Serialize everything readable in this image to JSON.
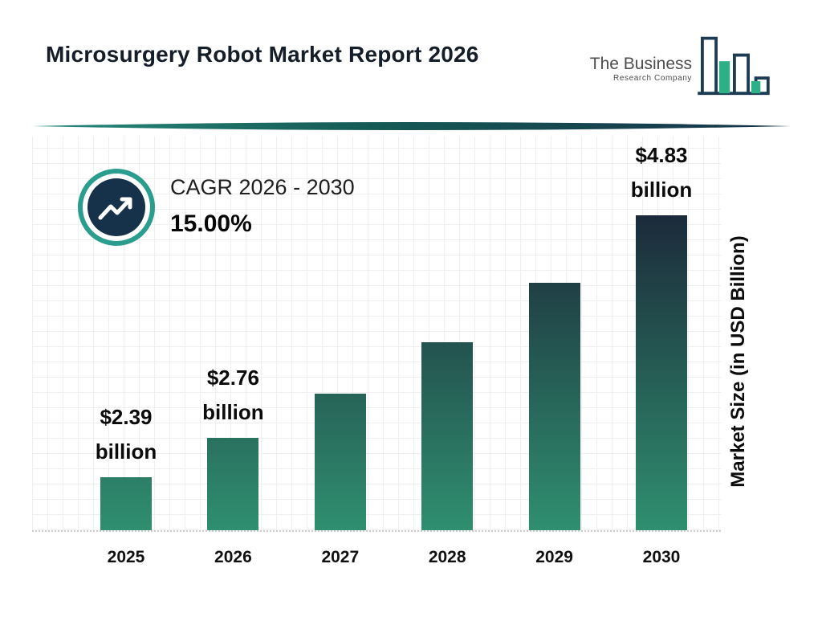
{
  "header": {
    "title": "Microsurgery Robot Market Report 2026",
    "logo": {
      "line1": "The Business",
      "line2": "Research Company"
    }
  },
  "cagr": {
    "label": "CAGR 2026 - 2030",
    "value": "15.00%"
  },
  "chart_data": {
    "type": "bar",
    "title": "Microsurgery Robot Market Report 2026",
    "categories": [
      "2025",
      "2026",
      "2027",
      "2028",
      "2029",
      "2030"
    ],
    "values": [
      2.39,
      2.76,
      3.17,
      3.65,
      4.2,
      4.83
    ],
    "bar_labels": [
      [
        "$2.39",
        "billion"
      ],
      [
        "$2.76",
        "billion"
      ],
      null,
      null,
      null,
      [
        "$4.83",
        "billion"
      ]
    ],
    "xlabel": "",
    "ylabel": "Market Size (in USD Billion)",
    "ylim": [
      1.9,
      4.83
    ],
    "grid": true,
    "legend": false
  },
  "colors": {
    "accent_teal": "#2a9d8f",
    "dark_navy": "#16324a",
    "bar_gradient_top": "#1c2a3a",
    "bar_gradient_bottom": "#2f8f6f",
    "logo_green": "#2eb086",
    "text_dark": "#111111"
  }
}
